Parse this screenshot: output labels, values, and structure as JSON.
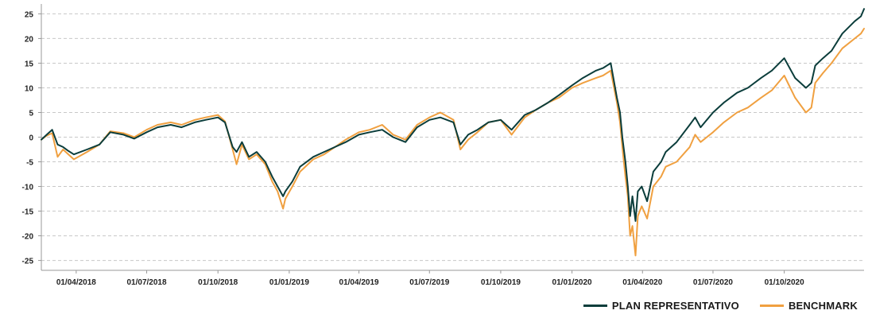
{
  "chart_data": {
    "type": "line",
    "title": "",
    "xlabel": "",
    "ylabel": "",
    "ylim": [
      -27,
      27
    ],
    "yticks": [
      -25,
      -20,
      -15,
      -10,
      -5,
      0,
      5,
      10,
      15,
      20,
      25
    ],
    "xlim": [
      "2018-02-15",
      "2021-01-12"
    ],
    "xticks": [
      "01/04/2018",
      "01/07/2018",
      "01/10/2018",
      "01/01/2019",
      "01/04/2019",
      "01/07/2019",
      "01/10/2019",
      "01/01/2020",
      "01/04/2020",
      "01/07/2020",
      "01/10/2020"
    ],
    "xtick_dates": [
      "2018-04-01",
      "2018-07-01",
      "2018-10-01",
      "2019-01-01",
      "2019-04-01",
      "2019-07-01",
      "2019-10-01",
      "2020-01-01",
      "2020-04-01",
      "2020-07-01",
      "2020-10-01"
    ],
    "grid": "horizontal-dashed",
    "legend": "bottom-right",
    "x": [
      "2018-02-15",
      "2018-02-22",
      "2018-03-01",
      "2018-03-08",
      "2018-03-15",
      "2018-03-22",
      "2018-03-29",
      "2018-04-15",
      "2018-05-01",
      "2018-05-15",
      "2018-06-01",
      "2018-06-15",
      "2018-07-01",
      "2018-07-15",
      "2018-08-01",
      "2018-08-15",
      "2018-09-01",
      "2018-09-15",
      "2018-10-01",
      "2018-10-10",
      "2018-10-20",
      "2018-10-25",
      "2018-11-01",
      "2018-11-10",
      "2018-11-20",
      "2018-12-01",
      "2018-12-10",
      "2018-12-17",
      "2018-12-24",
      "2018-12-27",
      "2019-01-05",
      "2019-01-15",
      "2019-02-01",
      "2019-02-15",
      "2019-03-01",
      "2019-03-15",
      "2019-04-01",
      "2019-04-15",
      "2019-05-01",
      "2019-05-15",
      "2019-05-31",
      "2019-06-15",
      "2019-07-01",
      "2019-07-15",
      "2019-08-01",
      "2019-08-10",
      "2019-08-20",
      "2019-09-01",
      "2019-09-15",
      "2019-10-01",
      "2019-10-15",
      "2019-11-01",
      "2019-11-15",
      "2019-12-01",
      "2019-12-15",
      "2020-01-01",
      "2020-01-15",
      "2020-02-01",
      "2020-02-10",
      "2020-02-20",
      "2020-02-28",
      "2020-03-03",
      "2020-03-06",
      "2020-03-10",
      "2020-03-13",
      "2020-03-16",
      "2020-03-19",
      "2020-03-23",
      "2020-03-26",
      "2020-03-31",
      "2020-04-07",
      "2020-04-15",
      "2020-04-25",
      "2020-05-01",
      "2020-05-15",
      "2020-06-01",
      "2020-06-08",
      "2020-06-15",
      "2020-07-01",
      "2020-07-15",
      "2020-08-01",
      "2020-08-15",
      "2020-09-01",
      "2020-09-15",
      "2020-10-01",
      "2020-10-15",
      "2020-10-29",
      "2020-11-05",
      "2020-11-10",
      "2020-11-20",
      "2020-12-01",
      "2020-12-15",
      "2020-12-31",
      "2021-01-08",
      "2021-01-12"
    ],
    "series": [
      {
        "name": "PLAN REPRESENTATIVO",
        "color": "#0b3d3b",
        "values": [
          -0.5,
          0.5,
          1.5,
          -1.5,
          -2.0,
          -2.8,
          -3.5,
          -2.5,
          -1.5,
          1.0,
          0.5,
          -0.3,
          1.0,
          2.0,
          2.5,
          2.0,
          3.0,
          3.5,
          4.0,
          3.0,
          -2.0,
          -3.0,
          -1.0,
          -4.0,
          -3.0,
          -5.0,
          -8.0,
          -10.0,
          -12.0,
          -11.0,
          -9.0,
          -6.0,
          -4.0,
          -3.0,
          -2.0,
          -1.0,
          0.5,
          1.0,
          1.5,
          0.0,
          -1.0,
          2.0,
          3.5,
          4.0,
          3.0,
          -1.5,
          0.5,
          1.5,
          3.0,
          3.5,
          1.5,
          4.5,
          5.5,
          7.0,
          8.5,
          10.5,
          12.0,
          13.5,
          14.0,
          15.0,
          8.0,
          5.0,
          0.0,
          -5.0,
          -10.0,
          -16.0,
          -12.0,
          -17.0,
          -11.0,
          -10.0,
          -13.0,
          -7.0,
          -5.0,
          -3.0,
          -1.0,
          2.5,
          4.0,
          2.0,
          5.0,
          7.0,
          9.0,
          10.0,
          12.0,
          13.5,
          16.0,
          12.0,
          10.0,
          11.0,
          14.5,
          16.0,
          17.5,
          21.0,
          23.5,
          24.5,
          26.0
        ]
      },
      {
        "name": "BENCHMARK",
        "color": "#f0a040",
        "values": [
          -0.5,
          0.3,
          0.8,
          -4.0,
          -2.5,
          -3.5,
          -4.5,
          -3.0,
          -1.5,
          1.2,
          0.8,
          0.0,
          1.5,
          2.5,
          3.0,
          2.5,
          3.5,
          4.0,
          4.5,
          3.2,
          -2.5,
          -5.5,
          -1.5,
          -4.5,
          -3.5,
          -5.5,
          -9.0,
          -11.0,
          -14.5,
          -12.5,
          -10.0,
          -7.0,
          -4.5,
          -3.5,
          -2.0,
          -0.5,
          1.0,
          1.5,
          2.5,
          0.5,
          -0.5,
          2.5,
          4.0,
          5.0,
          3.5,
          -2.5,
          -0.5,
          1.0,
          3.0,
          3.5,
          0.5,
          4.0,
          5.5,
          7.0,
          8.0,
          10.0,
          11.0,
          12.0,
          12.5,
          13.5,
          7.0,
          3.0,
          -2.0,
          -8.0,
          -12.0,
          -20.0,
          -18.0,
          -24.0,
          -16.0,
          -14.0,
          -16.5,
          -10.0,
          -8.0,
          -6.0,
          -5.0,
          -2.0,
          0.5,
          -1.0,
          1.0,
          3.0,
          5.0,
          6.0,
          8.0,
          9.5,
          12.5,
          8.0,
          5.0,
          6.0,
          11.0,
          13.0,
          15.0,
          18.0,
          20.0,
          21.0,
          22.0
        ]
      }
    ]
  }
}
